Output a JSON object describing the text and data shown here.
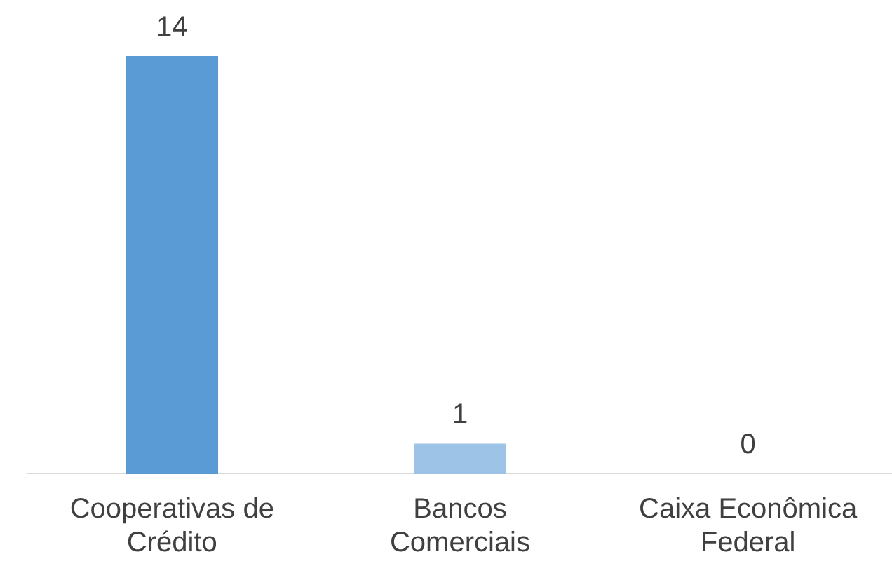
{
  "chart_data": {
    "type": "bar",
    "categories": [
      "Cooperativas de Crédito",
      "Bancos Comerciais",
      "Caixa Econômica Federal"
    ],
    "values": [
      14,
      1,
      0
    ],
    "colors": [
      "#5b9bd5",
      "#9dc3e6",
      "#9dc3e6"
    ],
    "data_labels": true,
    "grid": false,
    "legend": false
  }
}
